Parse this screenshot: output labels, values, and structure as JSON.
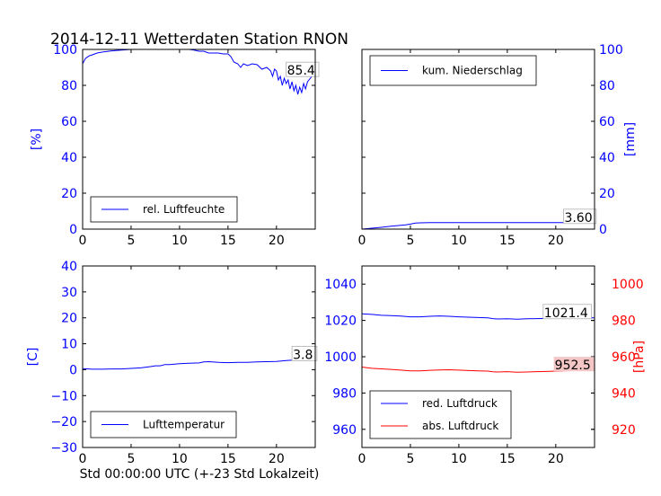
{
  "title": "2014-12-11 Wetterdaten Station RNON",
  "footer": "Std 00:00:00 UTC (+-23 Std Lokalzeit)",
  "colors": {
    "primary": "#0000ff",
    "secondary": "#ff0000",
    "axis": "#000000",
    "box_fill_red": "#f4c6c6"
  },
  "chart_data": [
    {
      "type": "line",
      "xlim": [
        0,
        24
      ],
      "ylim": [
        0,
        100
      ],
      "xticks": [
        0,
        5,
        10,
        15,
        20
      ],
      "yticks": [
        0,
        20,
        40,
        60,
        80,
        100
      ],
      "ylabel": "[%]",
      "ylabel_color": "#0000ff",
      "legend": {
        "placement": "lower-left"
      },
      "series": [
        {
          "name": "rel. Luftfeuchte",
          "color": "#0000ff",
          "points": [
            [
              0,
              92
            ],
            [
              0.3,
              95
            ],
            [
              0.7,
              96.5
            ],
            [
              1,
              97
            ],
            [
              1.5,
              98
            ],
            [
              2,
              98.5
            ],
            [
              3,
              99.2
            ],
            [
              4,
              99.6
            ],
            [
              5,
              100
            ],
            [
              6,
              100
            ],
            [
              7,
              100
            ],
            [
              8,
              100
            ],
            [
              9,
              100
            ],
            [
              10,
              100
            ],
            [
              11,
              100
            ],
            [
              11.5,
              99.6
            ],
            [
              12,
              99
            ],
            [
              12.5,
              99
            ],
            [
              13,
              98
            ],
            [
              14,
              98
            ],
            [
              14.5,
              97.5
            ],
            [
              15,
              97.5
            ],
            [
              15.3,
              96
            ],
            [
              15.6,
              93
            ],
            [
              16,
              92
            ],
            [
              16.3,
              90
            ],
            [
              16.6,
              92
            ],
            [
              17,
              91
            ],
            [
              17.5,
              92
            ],
            [
              18,
              91.5
            ],
            [
              18.5,
              89
            ],
            [
              19,
              90
            ],
            [
              19.4,
              88
            ],
            [
              19.6,
              85
            ],
            [
              19.8,
              89
            ],
            [
              20,
              88
            ],
            [
              20.2,
              83
            ],
            [
              20.4,
              85
            ],
            [
              20.6,
              80
            ],
            [
              20.8,
              84
            ],
            [
              21,
              81
            ],
            [
              21.2,
              83
            ],
            [
              21.4,
              78
            ],
            [
              21.6,
              82
            ],
            [
              21.8,
              77
            ],
            [
              22,
              80
            ],
            [
              22.2,
              75
            ],
            [
              22.4,
              79
            ],
            [
              22.6,
              76
            ],
            [
              22.8,
              81
            ],
            [
              23,
              78
            ],
            [
              23.2,
              82
            ],
            [
              23.5,
              84
            ],
            [
              23.8,
              86
            ]
          ]
        }
      ],
      "annotation": {
        "text": "85.4",
        "x": 21,
        "y": 85.4
      }
    },
    {
      "type": "line",
      "xlim": [
        0,
        24
      ],
      "ylim": [
        0,
        100
      ],
      "xticks": [
        0,
        5,
        10,
        15,
        20
      ],
      "yticks": [
        0,
        20,
        40,
        60,
        80,
        100
      ],
      "y_axis_side": "right",
      "ylabel": "[mm]",
      "ylabel_color": "#0000ff",
      "legend": {
        "placement": "upper-left"
      },
      "series": [
        {
          "name": "kum. Niederschlag",
          "color": "#0000ff",
          "points": [
            [
              0,
              0
            ],
            [
              1,
              0.5
            ],
            [
              2,
              1
            ],
            [
              3,
              1.6
            ],
            [
              4,
              2.1
            ],
            [
              4.5,
              2.4
            ],
            [
              5,
              2.8
            ],
            [
              5.5,
              3.4
            ],
            [
              6,
              3.5
            ],
            [
              7,
              3.6
            ],
            [
              10,
              3.6
            ],
            [
              15,
              3.6
            ],
            [
              20,
              3.6
            ],
            [
              24,
              3.6
            ]
          ]
        }
      ],
      "annotation": {
        "text": "3.60",
        "x": 20.8,
        "y": 3.6
      }
    },
    {
      "type": "line",
      "xlim": [
        0,
        24
      ],
      "ylim": [
        -30,
        40
      ],
      "xticks": [
        0,
        5,
        10,
        15,
        20
      ],
      "yticks": [
        -30,
        -20,
        -10,
        0,
        10,
        20,
        30,
        40
      ],
      "ylabel": "[C]",
      "ylabel_color": "#0000ff",
      "xlabel": "Std 00:00:00 UTC (+-23 Std Lokalzeit)",
      "legend": {
        "placement": "lower-left"
      },
      "series": [
        {
          "name": "Lufttemperatur",
          "color": "#0000ff",
          "points": [
            [
              0,
              0.4
            ],
            [
              1,
              0.2
            ],
            [
              2,
              0.2
            ],
            [
              3,
              0.3
            ],
            [
              4,
              0.3
            ],
            [
              5,
              0.5
            ],
            [
              6,
              0.7
            ],
            [
              7,
              1.2
            ],
            [
              7.5,
              1.5
            ],
            [
              8,
              1.5
            ],
            [
              8.5,
              2
            ],
            [
              9,
              2
            ],
            [
              10,
              2.3
            ],
            [
              11,
              2.5
            ],
            [
              12,
              2.6
            ],
            [
              12.5,
              3
            ],
            [
              13,
              3.1
            ],
            [
              14,
              2.8
            ],
            [
              15,
              2.7
            ],
            [
              16,
              2.8
            ],
            [
              17,
              2.8
            ],
            [
              18,
              3
            ],
            [
              19,
              3.1
            ],
            [
              20,
              3.2
            ],
            [
              21,
              3.5
            ],
            [
              22,
              3.8
            ],
            [
              23,
              3.8
            ],
            [
              23.8,
              3.8
            ]
          ]
        }
      ],
      "annotation": {
        "text": "3.8",
        "x": 21.6,
        "y": 3.8
      }
    },
    {
      "type": "line",
      "xlim": [
        0,
        24
      ],
      "ylim": [
        950,
        1050
      ],
      "xticks": [
        0,
        5,
        10,
        15,
        20
      ],
      "yticks": [
        960,
        980,
        1000,
        1020,
        1040
      ],
      "ylim_right": [
        910,
        1010
      ],
      "yticks_right": [
        920,
        940,
        960,
        980,
        1000
      ],
      "ylabel_right": "[hPa]",
      "ylabel_right_color": "#ff0000",
      "legend": {
        "placement": "lower-left"
      },
      "series": [
        {
          "name": "red. Luftdruck",
          "color": "#0000ff",
          "axis": "left",
          "points": [
            [
              0,
              1023.6
            ],
            [
              1,
              1023.3
            ],
            [
              2,
              1022.8
            ],
            [
              3,
              1022.6
            ],
            [
              4,
              1022.4
            ],
            [
              5,
              1022
            ],
            [
              6,
              1022
            ],
            [
              7,
              1022.3
            ],
            [
              8,
              1022.5
            ],
            [
              9,
              1022.3
            ],
            [
              10,
              1022
            ],
            [
              11,
              1021.8
            ],
            [
              12,
              1021.6
            ],
            [
              13,
              1021.4
            ],
            [
              13.5,
              1021
            ],
            [
              14,
              1020.8
            ],
            [
              15,
              1020.9
            ],
            [
              16,
              1020.7
            ],
            [
              17,
              1020.9
            ],
            [
              18,
              1021
            ],
            [
              19,
              1021.1
            ],
            [
              20,
              1021.2
            ],
            [
              21,
              1021.3
            ],
            [
              22,
              1021.4
            ],
            [
              23,
              1021.4
            ],
            [
              24,
              1021.4
            ]
          ]
        },
        {
          "name": "abs. Luftdruck",
          "color": "#ff0000",
          "axis": "right",
          "points": [
            [
              0,
              954.3
            ],
            [
              1,
              953.6
            ],
            [
              2,
              953.3
            ],
            [
              3,
              953
            ],
            [
              4,
              952.6
            ],
            [
              5,
              952.2
            ],
            [
              6,
              952.2
            ],
            [
              7,
              952.5
            ],
            [
              8,
              952.7
            ],
            [
              9,
              952.8
            ],
            [
              10,
              952.6
            ],
            [
              11,
              952.4
            ],
            [
              12,
              952.2
            ],
            [
              13,
              952.1
            ],
            [
              13.5,
              951.7
            ],
            [
              14,
              951.6
            ],
            [
              15,
              951.8
            ],
            [
              16,
              951.5
            ],
            [
              17,
              951.6
            ],
            [
              18,
              951.8
            ],
            [
              19,
              951.9
            ],
            [
              20,
              952.1
            ],
            [
              21,
              952.3
            ],
            [
              22,
              952.4
            ],
            [
              23,
              952.5
            ],
            [
              24,
              952.5
            ]
          ]
        }
      ],
      "annotations": [
        {
          "text": "1021.4",
          "x": 18.7,
          "y": 1021.4,
          "axis": "left"
        },
        {
          "text": "952.5",
          "x": 19.8,
          "y": 952.5,
          "axis": "right",
          "fill": "#f4c6c6"
        }
      ]
    }
  ]
}
